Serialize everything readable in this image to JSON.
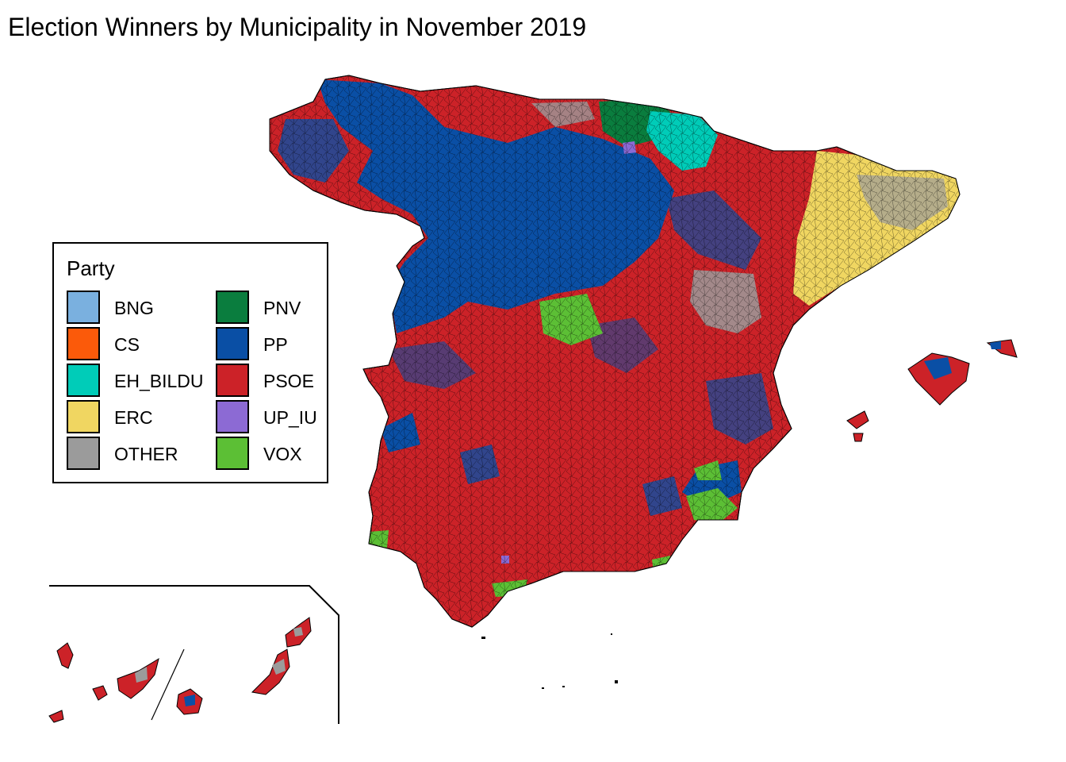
{
  "title": "Election Winners by Municipality in November 2019",
  "legend": {
    "title": "Party",
    "items": [
      {
        "label": "BNG",
        "color": "#7ab0df"
      },
      {
        "label": "CS",
        "color": "#fb5a0a"
      },
      {
        "label": "EH_BILDU",
        "color": "#00ccb8"
      },
      {
        "label": "ERC",
        "color": "#f0d661"
      },
      {
        "label": "OTHER",
        "color": "#9b9b9b"
      },
      {
        "label": "PNV",
        "color": "#0a7d3e"
      },
      {
        "label": "PP",
        "color": "#0a4fa5"
      },
      {
        "label": "PSOE",
        "color": "#cc2228"
      },
      {
        "label": "UP_IU",
        "color": "#8c6ad4"
      },
      {
        "label": "VOX",
        "color": "#5cbf35"
      }
    ]
  }
}
